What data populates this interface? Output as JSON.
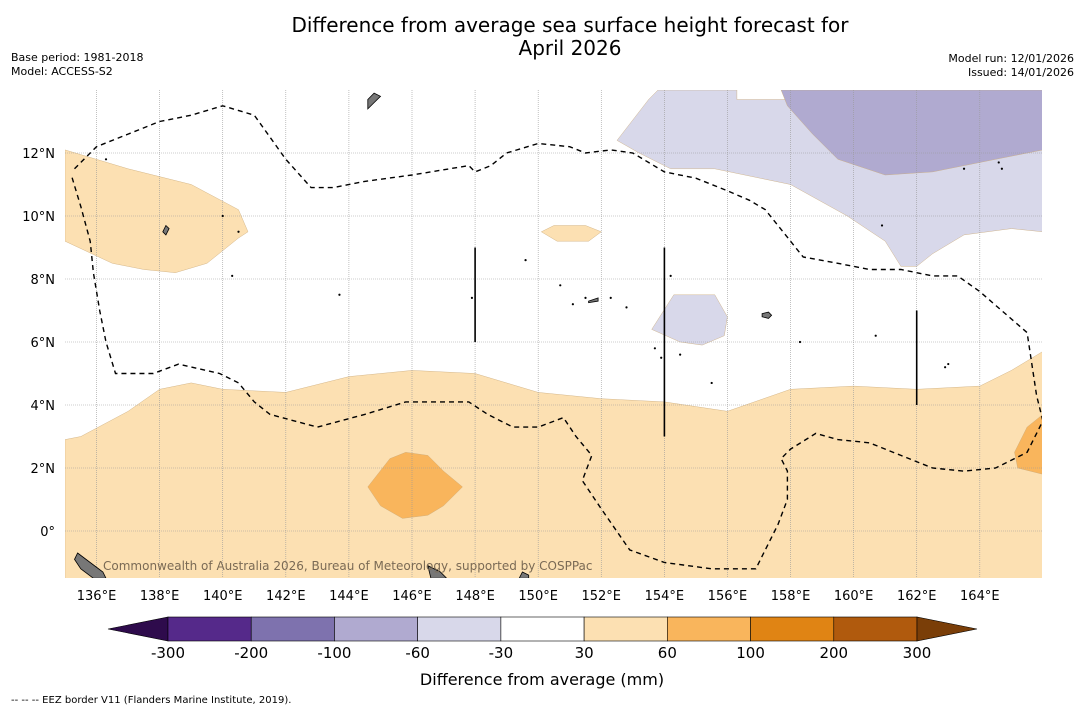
{
  "title_line1": "Difference from average sea surface height forecast for",
  "title_line2": "April 2026",
  "meta_left": [
    "Base period: 1981-2018",
    "Model: ACCESS-S2"
  ],
  "meta_right": [
    "Model run: 12/01/2026",
    "Issued: 14/01/2026"
  ],
  "map": {
    "lon_range": [
      135,
      166
    ],
    "lat_range": [
      -1.5,
      14
    ],
    "lon_ticks": [
      136,
      138,
      140,
      142,
      144,
      146,
      148,
      150,
      152,
      154,
      156,
      158,
      160,
      162,
      164
    ],
    "lon_tick_labels": [
      "136°E",
      "138°E",
      "140°E",
      "142°E",
      "144°E",
      "146°E",
      "148°E",
      "150°E",
      "152°E",
      "154°E",
      "156°E",
      "158°E",
      "160°E",
      "162°E",
      "164°E"
    ],
    "lat_ticks": [
      12,
      10,
      8,
      6,
      4,
      2,
      0
    ],
    "lat_tick_labels": [
      "12°N",
      "10°N",
      "8°N",
      "6°N",
      "4°N",
      "2°N",
      "0°"
    ],
    "credit": "Commonwealth of Australia 2026, Bureau of Meteorology, supported by COSPPac",
    "regions": [
      {
        "name": "region-30-60-west",
        "class": "30 to 60 mm",
        "color": "#fce0b2",
        "lonlat": [
          [
            135,
            12.1
          ],
          [
            137,
            11.5
          ],
          [
            139,
            11
          ],
          [
            140.5,
            10.2
          ],
          [
            140.8,
            9.5
          ],
          [
            140.5,
            9.3
          ],
          [
            139.5,
            8.5
          ],
          [
            138.5,
            8.2
          ],
          [
            137.5,
            8.3
          ],
          [
            136.5,
            8.5
          ],
          [
            135,
            9.2
          ]
        ]
      },
      {
        "name": "region-30-60-small",
        "class": "30 to 60 mm",
        "color": "#fce0b2",
        "lonlat": [
          [
            150.1,
            9.5
          ],
          [
            150.5,
            9.7
          ],
          [
            151.5,
            9.7
          ],
          [
            152,
            9.5
          ],
          [
            151.6,
            9.2
          ],
          [
            150.6,
            9.2
          ]
        ]
      },
      {
        "name": "region-30-60-south",
        "class": "30 to 60 mm",
        "color": "#fce0b2",
        "lonlat": [
          [
            135,
            2.9
          ],
          [
            135.5,
            3
          ],
          [
            137,
            3.8
          ],
          [
            138,
            4.5
          ],
          [
            139,
            4.7
          ],
          [
            140,
            4.5
          ],
          [
            142,
            4.4
          ],
          [
            144,
            4.9
          ],
          [
            146,
            5.1
          ],
          [
            148,
            5
          ],
          [
            150,
            4.4
          ],
          [
            152,
            4.2
          ],
          [
            154,
            4.1
          ],
          [
            156,
            3.8
          ],
          [
            158,
            4.5
          ],
          [
            160,
            4.6
          ],
          [
            162,
            4.5
          ],
          [
            164,
            4.6
          ],
          [
            165,
            5.1
          ],
          [
            166,
            5.7
          ],
          [
            166,
            -1.5
          ],
          [
            135,
            -1.5
          ]
        ]
      },
      {
        "name": "region-60-100-central",
        "class": "60 to 100 mm",
        "color": "#f9b55c",
        "lonlat": [
          [
            144.6,
            1.4
          ],
          [
            145.3,
            2.3
          ],
          [
            145.8,
            2.5
          ],
          [
            146.5,
            2.4
          ],
          [
            147,
            1.9
          ],
          [
            147.6,
            1.4
          ],
          [
            147,
            0.8
          ],
          [
            146.5,
            0.5
          ],
          [
            145.7,
            0.4
          ],
          [
            145,
            0.8
          ]
        ]
      },
      {
        "name": "region-60-100-east",
        "class": "60 to 100 mm",
        "color": "#f9b55c",
        "lonlat": [
          [
            166,
            3.7
          ],
          [
            165.5,
            3.3
          ],
          [
            165.1,
            2.5
          ],
          [
            165.2,
            2
          ],
          [
            166,
            1.8
          ]
        ]
      },
      {
        "name": "region-neg30-neg60-north",
        "class": "-60 to -30 mm",
        "color": "#d8d8ea",
        "lonlat": [
          [
            153.8,
            14
          ],
          [
            156.3,
            14
          ],
          [
            156.3,
            13.7
          ],
          [
            166,
            13.7
          ],
          [
            166,
            9.5
          ],
          [
            165,
            9.6
          ],
          [
            163.5,
            9.4
          ],
          [
            162.5,
            8.8
          ],
          [
            162,
            8.4
          ],
          [
            161.5,
            8.4
          ],
          [
            161,
            9.2
          ],
          [
            159.8,
            10
          ],
          [
            158,
            11
          ],
          [
            155.6,
            11.5
          ],
          [
            154.2,
            11.5
          ],
          [
            153.2,
            12
          ],
          [
            152.5,
            12.4
          ],
          [
            153.5,
            13.7
          ]
        ]
      },
      {
        "name": "region-neg30-neg60-mid",
        "class": "-60 to -30 mm",
        "color": "#d8d8ea",
        "lonlat": [
          [
            153.6,
            6.4
          ],
          [
            154.3,
            7.5
          ],
          [
            155.6,
            7.5
          ],
          [
            156,
            6.8
          ],
          [
            155.9,
            6.2
          ],
          [
            155.2,
            5.9
          ],
          [
            154.5,
            6
          ]
        ]
      },
      {
        "name": "region-neg60-neg100",
        "class": "-100 to -60 mm",
        "color": "#b0aad0",
        "lonlat": [
          [
            157.7,
            14
          ],
          [
            166,
            14
          ],
          [
            166,
            12.1
          ],
          [
            164.5,
            11.8
          ],
          [
            162.5,
            11.4
          ],
          [
            161,
            11.3
          ],
          [
            159.5,
            11.8
          ],
          [
            158.7,
            12.6
          ],
          [
            157.9,
            13.5
          ]
        ]
      }
    ],
    "eez_lines": [
      {
        "name": "eez-border-main",
        "lonlat": [
          [
            135.3,
            11.5
          ],
          [
            136,
            12.2
          ],
          [
            137,
            12.6
          ],
          [
            138,
            13
          ],
          [
            139,
            13.2
          ],
          [
            140,
            13.5
          ],
          [
            141,
            13.2
          ],
          [
            142,
            11.8
          ],
          [
            142.8,
            10.9
          ],
          [
            143.5,
            10.9
          ],
          [
            144.5,
            11.1
          ],
          [
            146,
            11.3
          ],
          [
            147.8,
            11.6
          ],
          [
            148,
            11.4
          ],
          [
            148.5,
            11.6
          ],
          [
            149,
            12
          ],
          [
            150,
            12.3
          ],
          [
            151,
            12.2
          ],
          [
            151.5,
            12
          ],
          [
            152.3,
            12.1
          ],
          [
            153,
            12
          ],
          [
            154,
            11.4
          ],
          [
            155,
            11.2
          ],
          [
            156,
            10.8
          ],
          [
            156.7,
            10.5
          ],
          [
            157.2,
            10.2
          ],
          [
            158.4,
            8.7
          ],
          [
            159.5,
            8.5
          ],
          [
            160.5,
            8.3
          ],
          [
            161.5,
            8.3
          ],
          [
            162.5,
            8.1
          ],
          [
            163.3,
            8.1
          ],
          [
            164,
            7.6
          ],
          [
            165.5,
            6.3
          ],
          [
            165.8,
            4.3
          ],
          [
            166,
            3.5
          ],
          [
            165.5,
            2.5
          ],
          [
            164.5,
            2
          ],
          [
            163.5,
            1.9
          ],
          [
            162.5,
            2
          ],
          [
            161.5,
            2.4
          ],
          [
            160.5,
            2.8
          ],
          [
            159.5,
            2.9
          ],
          [
            158.8,
            3.1
          ],
          [
            158,
            2.6
          ],
          [
            157.7,
            2.3
          ],
          [
            157.9,
            1.9
          ],
          [
            157.9,
            1
          ],
          [
            157.6,
            0.2
          ],
          [
            156.9,
            -1.2
          ],
          [
            155.5,
            -1.2
          ],
          [
            154,
            -1
          ],
          [
            152.9,
            -0.6
          ],
          [
            152,
            0.7
          ],
          [
            151.4,
            1.6
          ],
          [
            151.7,
            2.4
          ],
          [
            151.2,
            3
          ],
          [
            150.8,
            3.6
          ],
          [
            150,
            3.3
          ],
          [
            149.2,
            3.3
          ],
          [
            148.4,
            3.7
          ],
          [
            147.8,
            4.1
          ],
          [
            146.5,
            4.1
          ],
          [
            145.8,
            4.1
          ],
          [
            144.5,
            3.7
          ],
          [
            143,
            3.3
          ],
          [
            141.5,
            3.7
          ],
          [
            141,
            4.1
          ],
          [
            140.5,
            4.7
          ],
          [
            139.9,
            5
          ],
          [
            138.6,
            5.3
          ],
          [
            137.8,
            5
          ],
          [
            136.6,
            5
          ],
          [
            136.3,
            6
          ],
          [
            136.1,
            7
          ],
          [
            135.9,
            8.2
          ],
          [
            135.8,
            9.2
          ],
          [
            135.5,
            10.3
          ],
          [
            135.2,
            11.3
          ]
        ]
      },
      {
        "name": "eez-border-west-1",
        "lonlat": [
          [
            147.9,
            9
          ]
        ]
      },
      {
        "name": "eez-border-v-148",
        "lonlat": [
          [
            148,
            9
          ],
          [
            148,
            6
          ]
        ]
      },
      {
        "name": "eez-border-v-154",
        "lonlat": [
          [
            154,
            9
          ],
          [
            154,
            3
          ]
        ]
      },
      {
        "name": "eez-border-v-162",
        "lonlat": [
          [
            162,
            7
          ],
          [
            162,
            4
          ]
        ]
      }
    ],
    "islands": [
      {
        "name": "island-guam-area",
        "lonlat": [
          [
            144.6,
            13.4
          ],
          [
            144.8,
            13.6
          ],
          [
            145,
            13.8
          ],
          [
            144.8,
            13.9
          ],
          [
            144.6,
            13.7
          ]
        ]
      },
      {
        "name": "island-west-small",
        "lonlat": [
          [
            138.1,
            9.5
          ],
          [
            138.2,
            9.7
          ],
          [
            138.3,
            9.6
          ],
          [
            138.2,
            9.4
          ]
        ]
      },
      {
        "name": "island-pohnpei",
        "lonlat": [
          [
            157.1,
            6.9
          ],
          [
            157.3,
            6.95
          ],
          [
            157.4,
            6.85
          ],
          [
            157.3,
            6.75
          ],
          [
            157.1,
            6.8
          ]
        ]
      },
      {
        "name": "island-truk",
        "lonlat": [
          [
            151.6,
            7.3
          ],
          [
            151.9,
            7.4
          ],
          [
            151.9,
            7.3
          ],
          [
            151.6,
            7.25
          ]
        ]
      },
      {
        "name": "island-png-1",
        "lonlat": [
          [
            135.4,
            -0.7
          ],
          [
            135.8,
            -1
          ],
          [
            136.2,
            -1.3
          ],
          [
            136.3,
            -1.5
          ],
          [
            135.9,
            -1.5
          ],
          [
            135.5,
            -1.2
          ],
          [
            135.3,
            -0.9
          ]
        ]
      },
      {
        "name": "island-png-2",
        "lonlat": [
          [
            149.5,
            -1.3
          ],
          [
            149.7,
            -1.4
          ],
          [
            149.7,
            -1.5
          ],
          [
            149.4,
            -1.5
          ]
        ]
      },
      {
        "name": "island-manus",
        "lonlat": [
          [
            146.5,
            -1.1
          ],
          [
            146.9,
            -1.3
          ],
          [
            147.1,
            -1.5
          ],
          [
            146.6,
            -1.5
          ]
        ]
      }
    ],
    "dot_islands": [
      [
        140.5,
        9.5
      ],
      [
        140,
        10
      ],
      [
        136.3,
        11.8
      ],
      [
        140.3,
        8.1
      ],
      [
        143.7,
        7.5
      ],
      [
        147.9,
        7.4
      ],
      [
        150.7,
        7.8
      ],
      [
        152.8,
        7.1
      ],
      [
        151.1,
        7.2
      ],
      [
        151.5,
        7.4
      ],
      [
        152.3,
        7.4
      ],
      [
        154.2,
        8.1
      ],
      [
        154.5,
        5.6
      ],
      [
        153.7,
        5.8
      ],
      [
        153.9,
        5.5
      ],
      [
        155.5,
        4.7
      ],
      [
        158.3,
        6
      ],
      [
        160.7,
        6.2
      ],
      [
        162.9,
        5.2
      ],
      [
        163,
        5.3
      ],
      [
        163.5,
        11.5
      ],
      [
        164.6,
        11.7
      ],
      [
        164.7,
        11.5
      ],
      [
        160.9,
        9.7
      ],
      [
        149.6,
        8.6
      ]
    ]
  },
  "legend": {
    "title": "Difference from average (mm)",
    "tick_labels": [
      "-300",
      "-200",
      "-100",
      "-60",
      "-30",
      "30",
      "60",
      "100",
      "200",
      "300"
    ],
    "colors": [
      "#55298a",
      "#7e72ae",
      "#b0aad0",
      "#d8d8ea",
      "#ffffff",
      "#fce0b2",
      "#f9b55c",
      "#e08414",
      "#b05a0d"
    ],
    "low_extend_color": "#2e0b4c",
    "high_extend_color": "#7a3e08"
  },
  "footer": "--  --  -- EEZ border V11 (Flanders Marine Institute, 2019)."
}
